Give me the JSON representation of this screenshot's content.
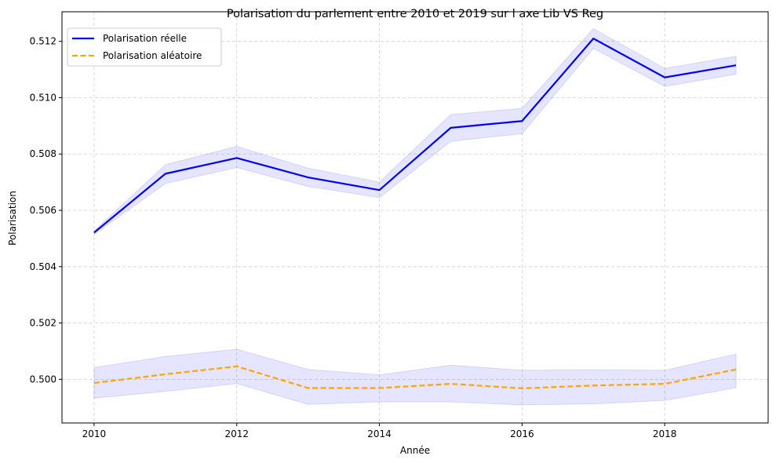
{
  "chart_data": {
    "type": "line",
    "title": "Polarisation du parlement entre 2010 et 2019 sur l axe Lib VS Reg",
    "xlabel": "Année",
    "ylabel": "Polarisation",
    "x": [
      2010,
      2011,
      2012,
      2013,
      2014,
      2015,
      2016,
      2017,
      2018,
      2019
    ],
    "xlim": [
      2009.55,
      2019.45
    ],
    "ylim": [
      0.49845,
      0.51305
    ],
    "xticks": [
      2010,
      2012,
      2014,
      2016,
      2018
    ],
    "xtick_labels": [
      "2010",
      "2012",
      "2014",
      "2016",
      "2018"
    ],
    "yticks": [
      0.5,
      0.502,
      0.504,
      0.506,
      0.508,
      0.51,
      0.512
    ],
    "ytick_labels": [
      "0.500",
      "0.502",
      "0.504",
      "0.506",
      "0.508",
      "0.510",
      "0.512"
    ],
    "grid": true,
    "legend_position": "top-left",
    "series": [
      {
        "name": "Polarisation réelle",
        "values": [
          0.50521,
          0.5073,
          0.50786,
          0.50717,
          0.50672,
          0.50893,
          0.50917,
          0.5121,
          0.51072,
          0.51115
        ],
        "lower": [
          0.50515,
          0.50695,
          0.50752,
          0.50685,
          0.50645,
          0.50845,
          0.50872,
          0.51175,
          0.5104,
          0.51083
        ],
        "upper": [
          0.50527,
          0.50762,
          0.50827,
          0.5075,
          0.507,
          0.5094,
          0.50962,
          0.51245,
          0.51104,
          0.51147
        ],
        "color": "#0000ff",
        "style": "solid",
        "band_color": "#0000ff"
      },
      {
        "name": "Polarisation aléatoire",
        "values": [
          0.49987,
          0.50018,
          0.50046,
          0.49969,
          0.49969,
          0.49984,
          0.49968,
          0.49978,
          0.49984,
          0.50035
        ],
        "lower": [
          0.49933,
          0.49957,
          0.49985,
          0.49911,
          0.4992,
          0.4992,
          0.49909,
          0.49913,
          0.49925,
          0.4997
        ],
        "upper": [
          0.50042,
          0.50081,
          0.50107,
          0.50035,
          0.50016,
          0.5005,
          0.50032,
          0.50034,
          0.50032,
          0.5009
        ],
        "color": "#ffa500",
        "style": "dashed",
        "band_color": "#0000ff"
      }
    ]
  }
}
